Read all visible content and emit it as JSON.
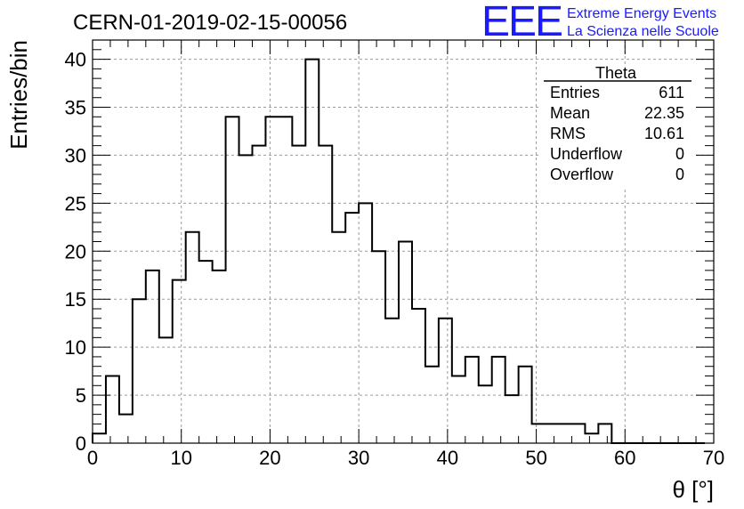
{
  "chart_data": {
    "type": "bar",
    "title": "CERN-01-2019-02-15-00056",
    "xlabel": "θ [°]",
    "ylabel": "Entries/bin",
    "xlim": [
      0,
      70
    ],
    "ylim": [
      0,
      42
    ],
    "xticks": [
      0,
      10,
      20,
      30,
      40,
      50,
      60,
      70
    ],
    "yticks": [
      0,
      5,
      10,
      15,
      20,
      25,
      30,
      35,
      40
    ],
    "grid": true,
    "bin_width": 1.5,
    "bin_start": 0,
    "values": [
      1,
      7,
      3,
      15,
      18,
      11,
      17,
      22,
      19,
      18,
      34,
      30,
      31,
      34,
      34,
      31,
      40,
      31,
      22,
      24,
      25,
      20,
      13,
      21,
      14,
      8,
      13,
      7,
      9,
      6,
      9,
      5,
      8,
      2,
      2,
      2,
      2,
      1,
      2,
      0,
      0,
      0,
      0,
      0,
      0,
      0
    ],
    "line_color": "#000000"
  },
  "stats_box": {
    "title": "Theta",
    "rows": [
      {
        "label": "Entries",
        "value": "611"
      },
      {
        "label": "Mean",
        "value": "22.35"
      },
      {
        "label": "RMS",
        "value": "10.61"
      },
      {
        "label": "Underflow",
        "value": "0"
      },
      {
        "label": "Overflow",
        "value": "0"
      }
    ]
  },
  "logo": {
    "mark": "EEE",
    "line1": "Extreme Energy Events",
    "line2": "La Scienza nelle Scuole",
    "color": "#1a1aff"
  }
}
